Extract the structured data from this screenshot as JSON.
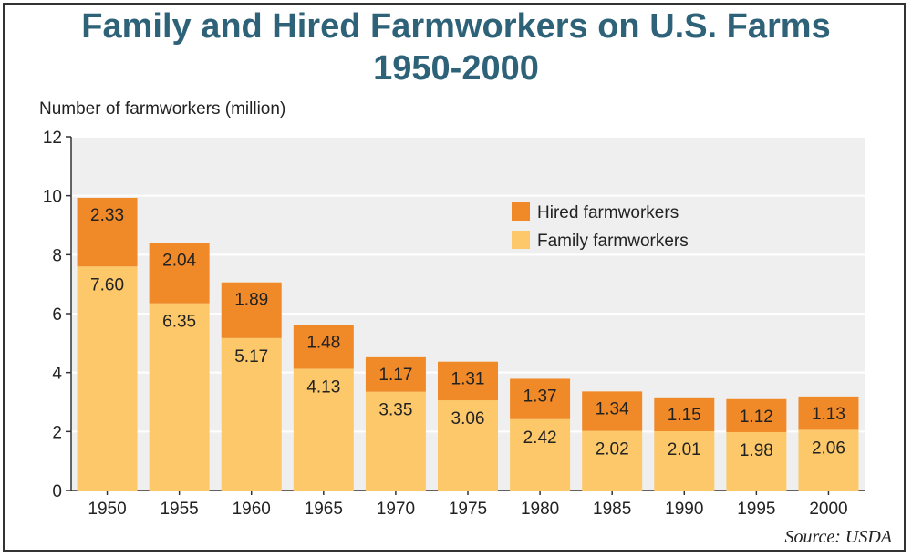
{
  "chart_data": {
    "type": "bar",
    "stacked": true,
    "title": "Family and Hired Farmworkers on U.S. Farms",
    "subtitle": "1950-2000",
    "ylabel": "Number of farmworkers (million)",
    "xlabel": "",
    "ylim": [
      0,
      12
    ],
    "yticks": [
      0,
      2,
      4,
      6,
      8,
      10,
      12
    ],
    "grid": true,
    "legend_position": "top-right",
    "categories": [
      "1950",
      "1955",
      "1960",
      "1965",
      "1970",
      "1975",
      "1980",
      "1985",
      "1990",
      "1995",
      "2000"
    ],
    "series": [
      {
        "name": "Family farmworkers",
        "color": "#fcc86a",
        "values": [
          7.6,
          6.35,
          5.17,
          4.13,
          3.35,
          3.06,
          2.42,
          2.02,
          2.01,
          1.98,
          2.06
        ]
      },
      {
        "name": "Hired farmworkers",
        "color": "#f08a28",
        "values": [
          2.33,
          2.04,
          1.89,
          1.48,
          1.17,
          1.31,
          1.37,
          1.34,
          1.15,
          1.12,
          1.13
        ]
      }
    ],
    "source": "Source: USDA"
  },
  "colors": {
    "title": "#2e6278",
    "plot_background": "#efefef",
    "gridline": "#ffffff"
  }
}
